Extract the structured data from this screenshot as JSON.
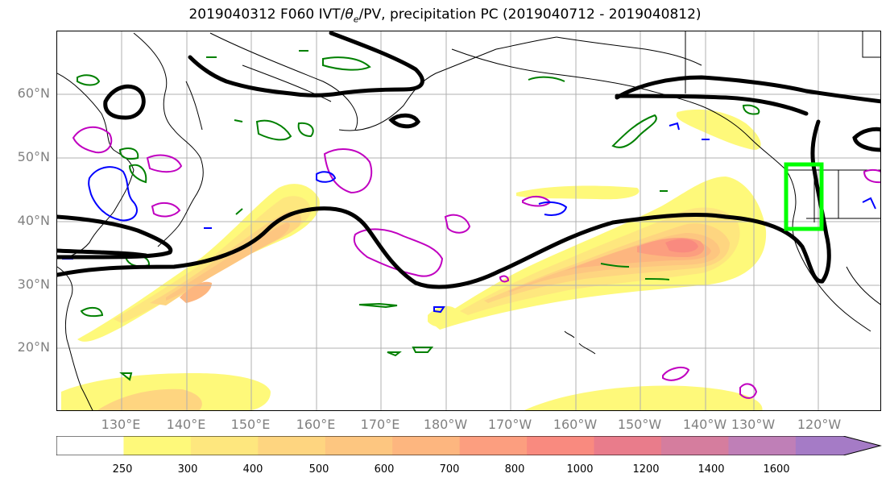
{
  "title_parts": {
    "prefix": "2019040312 F060 IVT/",
    "theta": "θ",
    "theta_sub": "e",
    "suffix": "/PV, precipitation PC (2019040712 - 2019040812)"
  },
  "map": {
    "projection": "PlateCarree",
    "lon_range": [
      "120°E",
      "115°W"
    ],
    "lat_range": [
      "10°N",
      "70°N"
    ],
    "grid": true,
    "lat_ticks": [
      "60°N",
      "50°N",
      "40°N",
      "30°N",
      "20°N"
    ],
    "lon_ticks": [
      "130°E",
      "140°E",
      "150°E",
      "160°E",
      "170°E",
      "180°W",
      "170°W",
      "160°W",
      "150°W",
      "140°W",
      "130°W",
      "120°W"
    ],
    "layers": [
      "ivt-filled-contours",
      "theta-e-contours-black",
      "pv-contours-green",
      "precip-pc-contours-magenta",
      "precip-pc-contours-blue",
      "target-box-lime"
    ],
    "colors": {
      "ivt_line": "#000000",
      "pv": "#008000",
      "pc_positive": "#c000c0",
      "pc_negative": "#0000ff",
      "target_box": "#00ff00",
      "axis_labels": "#808080"
    }
  },
  "colorbar": {
    "levels": [
      "250",
      "300",
      "400",
      "500",
      "600",
      "700",
      "800",
      "1000",
      "1200",
      "1400",
      "1600"
    ],
    "colors": [
      "#ffffff",
      "#fef97a",
      "#fee77e",
      "#fed580",
      "#fdc680",
      "#fdb67f",
      "#fc9e7f",
      "#f98a7f",
      "#e97c8b",
      "#d57d9e",
      "#bf7fb7",
      "#a57bc6"
    ],
    "extend": "max"
  }
}
